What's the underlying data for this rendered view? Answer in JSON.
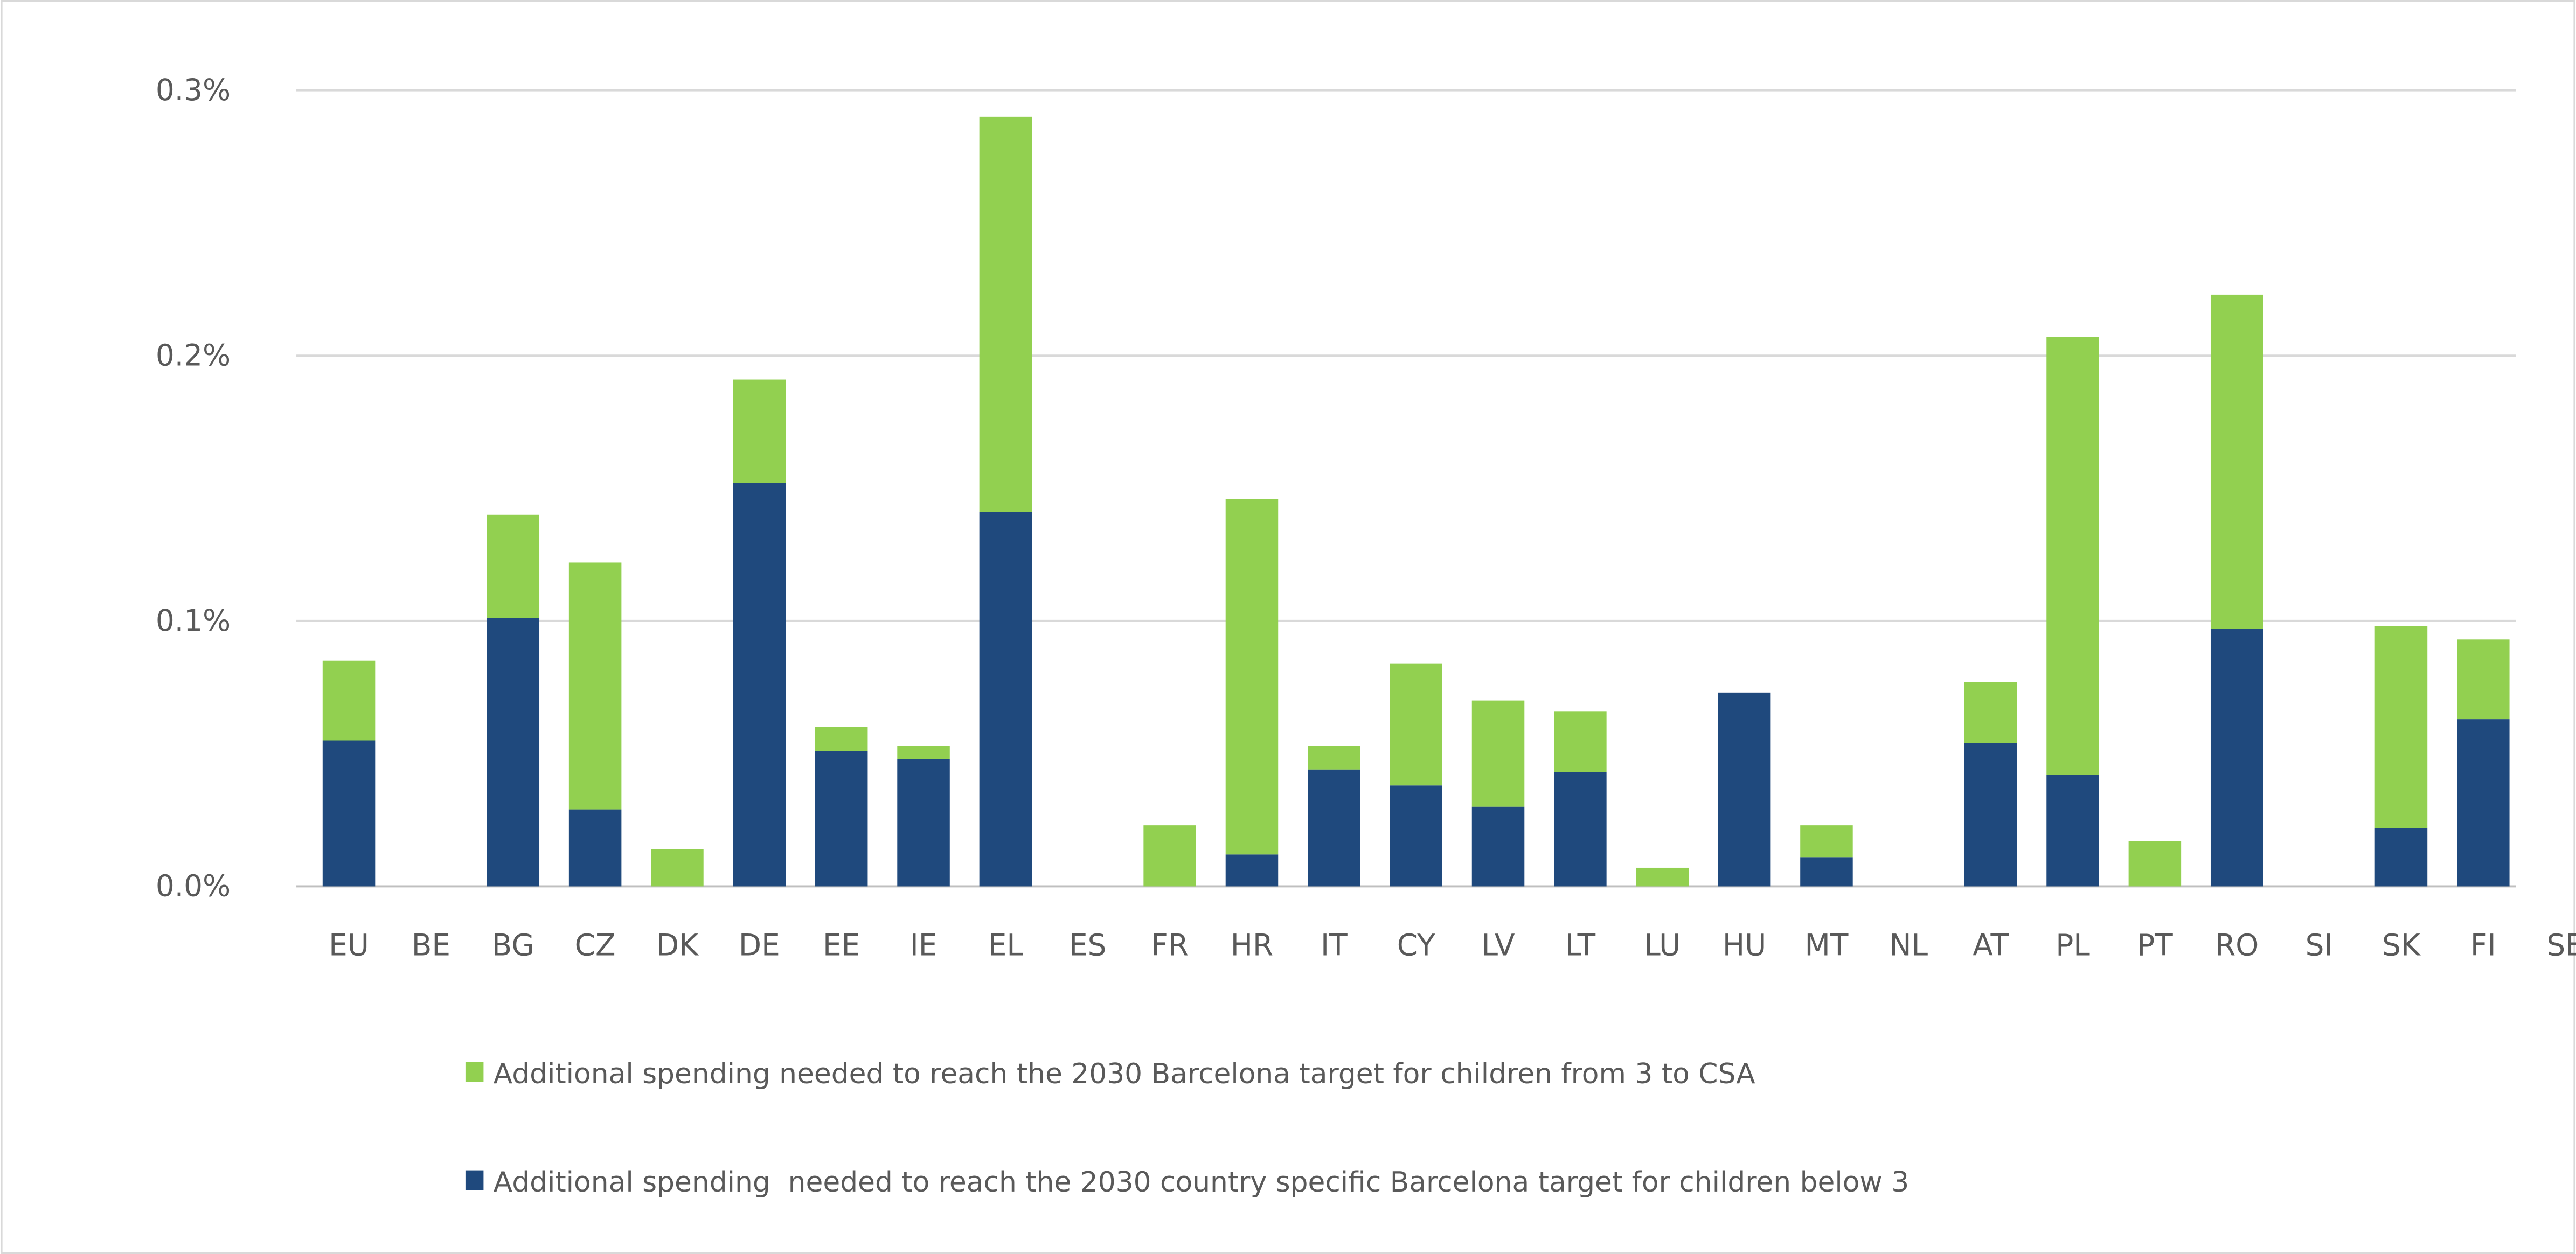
{
  "chart_data": {
    "type": "bar",
    "stacked": true,
    "categories": [
      "EU",
      "BE",
      "BG",
      "CZ",
      "DK",
      "DE",
      "EE",
      "IE",
      "EL",
      "ES",
      "FR",
      "HR",
      "IT",
      "CY",
      "LV",
      "LT",
      "LU",
      "HU",
      "MT",
      "NL",
      "AT",
      "PL",
      "PT",
      "RO",
      "SI",
      "SK",
      "FI",
      "SE"
    ],
    "series": [
      {
        "name": "Additional spending  needed to reach the 2030 country specific Barcelona target for children below 3",
        "color": "#1f497d",
        "values": [
          0.055,
          0,
          0.101,
          0.029,
          0,
          0.152,
          0.051,
          0.048,
          0.141,
          0,
          0,
          0.012,
          0.044,
          0.038,
          0.03,
          0.043,
          0,
          0.073,
          0.011,
          0,
          0.054,
          0.042,
          0,
          0.097,
          0,
          0.022,
          0.063,
          0
        ]
      },
      {
        "name": "Additional spending needed to reach the 2030 Barcelona target for children from 3 to CSA",
        "color": "#92d050",
        "values": [
          0.03,
          0,
          0.039,
          0.093,
          0.014,
          0.039,
          0.009,
          0.005,
          0.149,
          0,
          0.023,
          0.134,
          0.009,
          0.046,
          0.04,
          0.023,
          0.007,
          0,
          0.012,
          0,
          0.023,
          0.165,
          0.017,
          0.126,
          0,
          0.076,
          0.03,
          0
        ]
      }
    ],
    "yticks": [
      "0.0%",
      "0.1%",
      "0.2%",
      "0.3%"
    ],
    "ylim": [
      0,
      0.3
    ],
    "yunit": "%",
    "grid": true,
    "legend_position": "bottom"
  }
}
